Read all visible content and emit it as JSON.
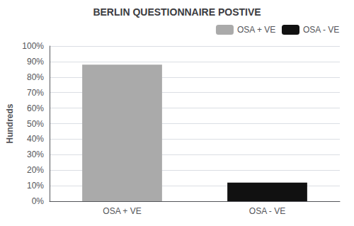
{
  "chart_data": {
    "type": "bar",
    "title": "BERLIN QUESTIONNAIRE POSTIVE",
    "categories": [
      "OSA + VE",
      "OSA - VE"
    ],
    "values": [
      88,
      12
    ],
    "colors": [
      "#aaaaaa",
      "#111111"
    ],
    "ylabel": "Hundreds",
    "ylim": [
      0,
      100
    ],
    "yticks": [
      {
        "value": 0,
        "label": "0%"
      },
      {
        "value": 10,
        "label": "10%"
      },
      {
        "value": 20,
        "label": "20%"
      },
      {
        "value": 30,
        "label": "30%"
      },
      {
        "value": 40,
        "label": "40%"
      },
      {
        "value": 50,
        "label": "50%"
      },
      {
        "value": 60,
        "label": "60%"
      },
      {
        "value": 70,
        "label": "70%"
      },
      {
        "value": 80,
        "label": "80%"
      },
      {
        "value": 90,
        "label": "90%"
      },
      {
        "value": 100,
        "label": "100%"
      }
    ],
    "grid": true,
    "legend": "upper right"
  }
}
